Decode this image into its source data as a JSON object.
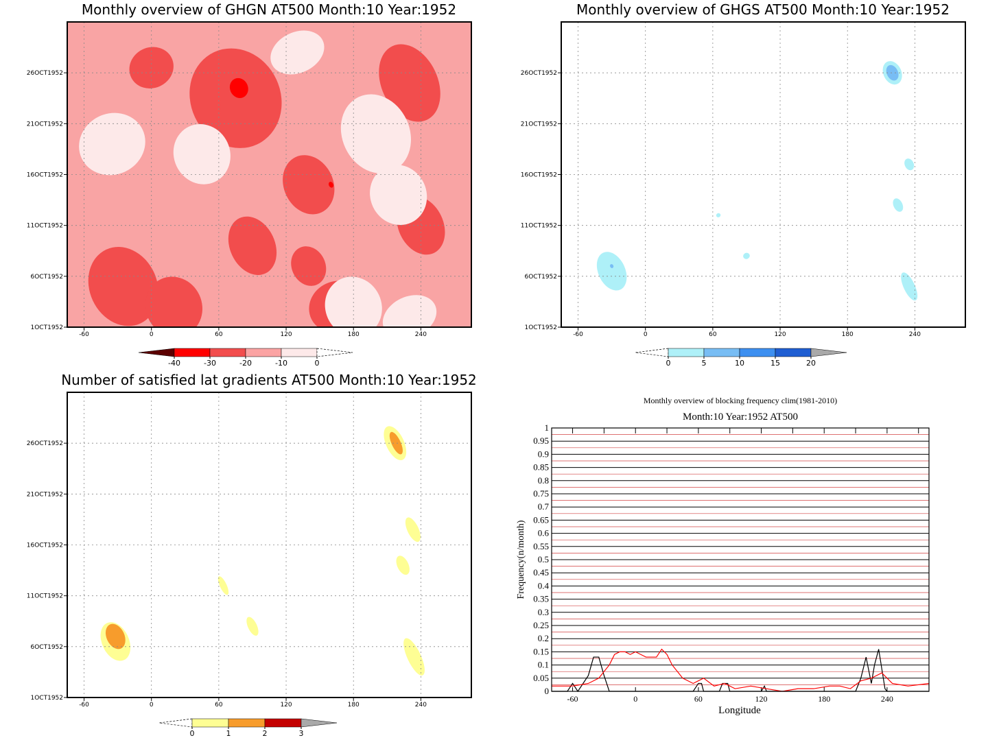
{
  "panels": {
    "ghgn": {
      "title": "Monthly overview of GHGN AT500 Month:10 Year:1952",
      "yticks": [
        "1OCT1952",
        "6OCT1952",
        "11OCT1952",
        "16OCT1952",
        "21OCT1952",
        "26OCT1952"
      ],
      "xticks": [
        "-60",
        "0",
        "60",
        "120",
        "180",
        "240"
      ],
      "colorbar": [
        "-40",
        "-30",
        "-20",
        "-10",
        "0"
      ],
      "colors": [
        "#5c0000",
        "#ff0000",
        "#f24d4d",
        "#fba3a3",
        "#fde9e9"
      ],
      "background_color": "#f9a4a4"
    },
    "ghgs": {
      "title": "Monthly overview of GHGS AT500 Month:10 Year:1952",
      "yticks": [
        "1OCT1952",
        "6OCT1952",
        "11OCT1952",
        "16OCT1952",
        "21OCT1952",
        "26OCT1952"
      ],
      "xticks": [
        "-60",
        "0",
        "60",
        "120",
        "180",
        "240"
      ],
      "colorbar": [
        "0",
        "5",
        "10",
        "15",
        "20"
      ],
      "colors": [
        "#aef0f8",
        "#78bdf4",
        "#3d8ff0",
        "#1f5ed2",
        "#a9a9a9"
      ]
    },
    "gradients": {
      "title": "Number of satisfied lat gradients AT500 Month:10 Year:1952",
      "yticks": [
        "1OCT1952",
        "6OCT1952",
        "11OCT1952",
        "16OCT1952",
        "21OCT1952",
        "26OCT1952"
      ],
      "xticks": [
        "-60",
        "0",
        "60",
        "120",
        "180",
        "240"
      ],
      "colorbar": [
        "0",
        "1",
        "2",
        "3"
      ],
      "colors": [
        "#fefe94",
        "#f79c2c",
        "#c40000",
        "#a9a9a9"
      ]
    },
    "frequency": {
      "title": "Monthly overview of blocking frequency clim(1981-2010)",
      "subtitle": "Month:10 Year:1952  AT500",
      "xlabel": "Longitude",
      "ylabel": "Frequency(n/month)",
      "xticks": [
        "-60",
        "0",
        "60",
        "120",
        "180",
        "240"
      ],
      "yticks": [
        "0",
        "0.05",
        "0.1",
        "0.15",
        "0.2",
        "0.25",
        "0.3",
        "0.35",
        "0.4",
        "0.45",
        "0.5",
        "0.55",
        "0.6",
        "0.65",
        "0.7",
        "0.75",
        "0.8",
        "0.85",
        "0.9",
        "0.95",
        "1"
      ]
    }
  },
  "chart_data": [
    {
      "type": "heatmap",
      "title": "Monthly overview of GHGN AT500 Month:10 Year:1952",
      "xlim": [
        -75,
        285
      ],
      "x_ticks": [
        -60,
        0,
        60,
        120,
        180,
        240
      ],
      "y_ticks": [
        "1OCT1952",
        "6OCT1952",
        "11OCT1952",
        "16OCT1952",
        "21OCT1952",
        "26OCT1952"
      ],
      "levels": [
        -40,
        -30,
        -20,
        -10,
        0
      ],
      "regions": [
        {
          "level": -20,
          "lon": 75,
          "day": 23.5,
          "rlon": 40,
          "rday": 5
        },
        {
          "level": -20,
          "lon": -25,
          "day": 5,
          "rlon": 30,
          "rday": 4
        },
        {
          "level": -20,
          "lon": 230,
          "day": 25,
          "rlon": 25,
          "rday": 4
        },
        {
          "level": -20,
          "lon": 140,
          "day": 15,
          "rlon": 22,
          "rday": 3
        },
        {
          "level": -20,
          "lon": 240,
          "day": 11,
          "rlon": 20,
          "rday": 3
        },
        {
          "level": -20,
          "lon": 90,
          "day": 9,
          "rlon": 20,
          "rday": 3
        },
        {
          "level": -20,
          "lon": 20,
          "day": 3,
          "rlon": 25,
          "rday": 3
        },
        {
          "level": -20,
          "lon": 165,
          "day": 3,
          "rlon": 25,
          "rday": 2.5
        },
        {
          "level": -20,
          "lon": 0,
          "day": 26.5,
          "rlon": 20,
          "rday": 2
        },
        {
          "level": -20,
          "lon": 140,
          "day": 7,
          "rlon": 15,
          "rday": 2
        },
        {
          "level": -30,
          "lon": 78,
          "day": 24.5,
          "rlon": 8,
          "rday": 1
        },
        {
          "level": -30,
          "lon": 160,
          "day": 15,
          "rlon": 2,
          "rday": 0.3
        },
        {
          "level": 0,
          "lon": -35,
          "day": 19,
          "rlon": 30,
          "rday": 3
        },
        {
          "level": 0,
          "lon": 200,
          "day": 20,
          "rlon": 30,
          "rday": 4
        },
        {
          "level": 0,
          "lon": 180,
          "day": 3,
          "rlon": 25,
          "rday": 3
        },
        {
          "level": 0,
          "lon": 45,
          "day": 18,
          "rlon": 25,
          "rday": 3
        },
        {
          "level": 0,
          "lon": 230,
          "day": 2,
          "rlon": 25,
          "rday": 2
        },
        {
          "level": 0,
          "lon": 130,
          "day": 28,
          "rlon": 25,
          "rday": 2
        },
        {
          "level": 0,
          "lon": 220,
          "day": 14,
          "rlon": 25,
          "rday": 3
        }
      ]
    },
    {
      "type": "heatmap",
      "title": "Monthly overview of GHGS AT500 Month:10 Year:1952",
      "xlim": [
        -75,
        285
      ],
      "x_ticks": [
        -60,
        0,
        60,
        120,
        180,
        240
      ],
      "y_ticks": [
        "1OCT1952",
        "6OCT1952",
        "11OCT1952",
        "16OCT1952",
        "21OCT1952",
        "26OCT1952"
      ],
      "levels": [
        0,
        5,
        10,
        15,
        20
      ],
      "regions": [
        {
          "level": 0,
          "lon": -30,
          "day": 6.5,
          "rlon": 12,
          "rday": 2
        },
        {
          "level": 0,
          "lon": 220,
          "day": 26,
          "rlon": 8,
          "rday": 1.2
        },
        {
          "level": 0,
          "lon": 235,
          "day": 17,
          "rlon": 4,
          "rday": 0.6
        },
        {
          "level": 0,
          "lon": 225,
          "day": 13,
          "rlon": 4,
          "rday": 0.7
        },
        {
          "level": 0,
          "lon": 235,
          "day": 5,
          "rlon": 5,
          "rday": 1.5
        },
        {
          "level": 0,
          "lon": 65,
          "day": 12,
          "rlon": 2,
          "rday": 0.2
        },
        {
          "level": 0,
          "lon": 90,
          "day": 8,
          "rlon": 3,
          "rday": 0.3
        },
        {
          "level": 5,
          "lon": 220,
          "day": 26,
          "rlon": 5,
          "rday": 0.8
        },
        {
          "level": 5,
          "lon": -30,
          "day": 7,
          "rlon": 1.5,
          "rday": 0.2
        }
      ]
    },
    {
      "type": "heatmap",
      "title": "Number of satisfied lat gradients AT500 Month:10 Year:1952",
      "xlim": [
        -75,
        285
      ],
      "x_ticks": [
        -60,
        0,
        60,
        120,
        180,
        240
      ],
      "y_ticks": [
        "1OCT1952",
        "6OCT1952",
        "11OCT1952",
        "16OCT1952",
        "21OCT1952",
        "26OCT1952"
      ],
      "levels": [
        0,
        1,
        2,
        3
      ],
      "regions": [
        {
          "level": 1,
          "lon": -32,
          "day": 6.5,
          "rlon": 12,
          "rday": 2
        },
        {
          "level": 1,
          "lon": 217,
          "day": 26,
          "rlon": 8,
          "rday": 1.8
        },
        {
          "level": 1,
          "lon": 233,
          "day": 17.5,
          "rlon": 5,
          "rday": 1.3
        },
        {
          "level": 1,
          "lon": 224,
          "day": 14,
          "rlon": 5,
          "rday": 1
        },
        {
          "level": 1,
          "lon": 234,
          "day": 5,
          "rlon": 6,
          "rday": 2
        },
        {
          "level": 1,
          "lon": 64,
          "day": 12,
          "rlon": 3,
          "rday": 1
        },
        {
          "level": 1,
          "lon": 90,
          "day": 8,
          "rlon": 4,
          "rday": 1
        },
        {
          "level": 2,
          "lon": -32,
          "day": 7,
          "rlon": 8,
          "rday": 1.3
        },
        {
          "level": 2,
          "lon": 218,
          "day": 26,
          "rlon": 4,
          "rday": 1.2
        }
      ]
    },
    {
      "type": "line",
      "title": "Monthly overview of blocking frequency clim(1981-2010)",
      "subtitle": "Month:10 Year:1952  AT500",
      "xlabel": "Longitude",
      "ylabel": "Frequency(n/month)",
      "xlim": [
        -80,
        280
      ],
      "ylim": [
        0,
        1
      ],
      "x_ticks": [
        -60,
        0,
        60,
        120,
        180,
        240
      ],
      "series": [
        {
          "color": "#000000",
          "x": [
            -80,
            -65,
            -60,
            -55,
            -45,
            -40,
            -35,
            -30,
            -25,
            -20,
            55,
            60,
            63,
            65,
            80,
            83,
            88,
            90,
            95,
            120,
            123,
            125,
            210,
            215,
            220,
            225,
            228,
            232,
            236,
            238,
            240,
            245,
            280
          ],
          "y": [
            0,
            0,
            0.03,
            0,
            0.06,
            0.13,
            0.13,
            0.06,
            0,
            0,
            0,
            0.03,
            0.03,
            0,
            0,
            0.03,
            0.03,
            0,
            0,
            0,
            0.02,
            0,
            0,
            0.05,
            0.13,
            0.03,
            0.1,
            0.16,
            0.06,
            0.01,
            0,
            0,
            0
          ]
        },
        {
          "color": "#ff0000",
          "x": [
            -80,
            -60,
            -45,
            -35,
            -25,
            -20,
            -15,
            -10,
            -5,
            0,
            5,
            10,
            15,
            20,
            25,
            30,
            35,
            45,
            55,
            65,
            75,
            85,
            95,
            110,
            125,
            140,
            155,
            170,
            185,
            195,
            205,
            215,
            225,
            235,
            245,
            260,
            280
          ],
          "y": [
            0.02,
            0.02,
            0.03,
            0.05,
            0.1,
            0.14,
            0.15,
            0.15,
            0.14,
            0.15,
            0.14,
            0.13,
            0.13,
            0.13,
            0.16,
            0.14,
            0.1,
            0.05,
            0.03,
            0.05,
            0.02,
            0.03,
            0.01,
            0.02,
            0.01,
            0.0,
            0.01,
            0.01,
            0.02,
            0.02,
            0.01,
            0.04,
            0.05,
            0.07,
            0.03,
            0.02,
            0.03
          ]
        }
      ]
    }
  ]
}
